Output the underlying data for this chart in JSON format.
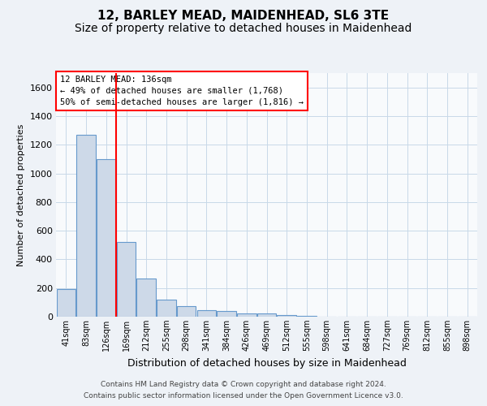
{
  "title1": "12, BARLEY MEAD, MAIDENHEAD, SL6 3TE",
  "title2": "Size of property relative to detached houses in Maidenhead",
  "xlabel": "Distribution of detached houses by size in Maidenhead",
  "ylabel": "Number of detached properties",
  "categories": [
    "41sqm",
    "83sqm",
    "126sqm",
    "169sqm",
    "212sqm",
    "255sqm",
    "298sqm",
    "341sqm",
    "384sqm",
    "426sqm",
    "469sqm",
    "512sqm",
    "555sqm",
    "598sqm",
    "641sqm",
    "684sqm",
    "727sqm",
    "769sqm",
    "812sqm",
    "855sqm",
    "898sqm"
  ],
  "values": [
    193,
    1268,
    1100,
    520,
    265,
    120,
    75,
    45,
    40,
    25,
    20,
    10,
    3,
    0,
    0,
    0,
    0,
    0,
    0,
    0,
    0
  ],
  "bar_color": "#cdd9e8",
  "bar_edge_color": "#6699cc",
  "red_line_x": 2.5,
  "annotation_title": "12 BARLEY MEAD: 136sqm",
  "annotation_line1": "← 49% of detached houses are smaller (1,768)",
  "annotation_line2": "50% of semi-detached houses are larger (1,816) →",
  "footer1": "Contains HM Land Registry data © Crown copyright and database right 2024.",
  "footer2": "Contains public sector information licensed under the Open Government Licence v3.0.",
  "ylim": [
    0,
    1700
  ],
  "yticks": [
    0,
    200,
    400,
    600,
    800,
    1000,
    1200,
    1400,
    1600
  ],
  "bg_color": "#eef2f7",
  "plot_bg_color": "#f8fafc",
  "grid_color": "#c8d8e8",
  "title_fontsize": 11,
  "subtitle_fontsize": 10
}
